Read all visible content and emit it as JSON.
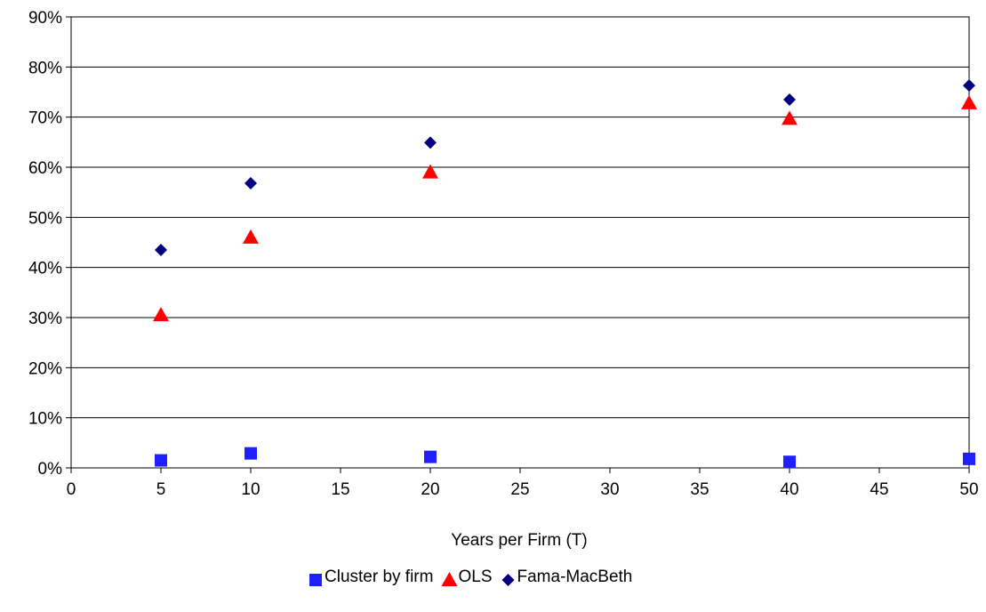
{
  "chart_data": {
    "type": "scatter",
    "title": "",
    "xlabel": "Years per Firm (T)",
    "ylabel": "",
    "xlim": [
      0,
      50
    ],
    "ylim": [
      0,
      0.9
    ],
    "x_ticks": [
      "0",
      "5",
      "10",
      "15",
      "20",
      "25",
      "30",
      "35",
      "40",
      "45",
      "50"
    ],
    "y_ticks": [
      "0%",
      "10%",
      "20%",
      "30%",
      "40%",
      "50%",
      "60%",
      "70%",
      "80%",
      "90%"
    ],
    "grid": "horizontal",
    "legend_position": "bottom",
    "series": [
      {
        "name": "Cluster by firm",
        "marker": "square",
        "color": "#1f1fff",
        "points": [
          [
            5,
            0.015
          ],
          [
            10,
            0.029
          ],
          [
            20,
            0.022
          ],
          [
            40,
            0.012
          ],
          [
            50,
            0.018
          ]
        ]
      },
      {
        "name": "OLS",
        "marker": "triangle",
        "color": "#ff0000",
        "points": [
          [
            5,
            0.305
          ],
          [
            10,
            0.46
          ],
          [
            20,
            0.59
          ],
          [
            40,
            0.697
          ],
          [
            50,
            0.728
          ]
        ]
      },
      {
        "name": "Fama-MacBeth",
        "marker": "diamond",
        "color": "#000080",
        "points": [
          [
            5,
            0.435
          ],
          [
            10,
            0.568
          ],
          [
            20,
            0.649
          ],
          [
            40,
            0.735
          ],
          [
            50,
            0.763
          ]
        ]
      }
    ]
  }
}
